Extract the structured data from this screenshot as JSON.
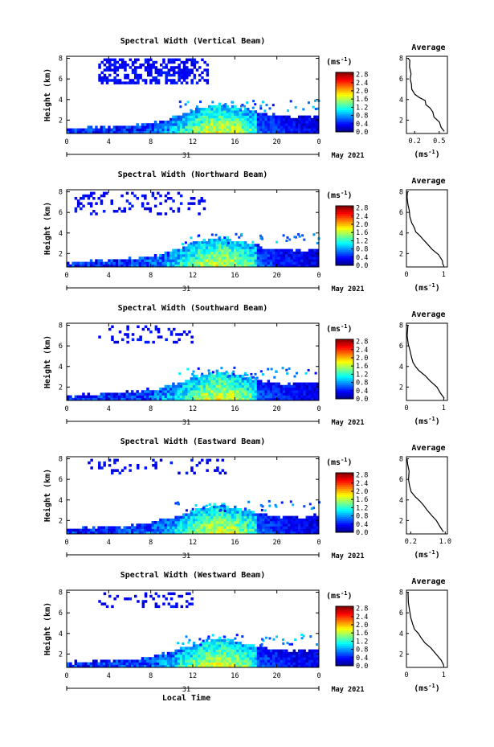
{
  "figure": {
    "date_label": "May 2021",
    "day_label": "31",
    "xlabel": "Local Time",
    "ylabel": "Height (km)",
    "colorbar_unit": "(ms",
    "colorbar_unit_sup": "-1",
    "avg_title": "Average",
    "avg_unit": "(ms",
    "avg_unit_sup": "-1",
    "colormap": "jet"
  },
  "chart_data": [
    {
      "type": "heatmap",
      "title": "Spectral Width (Vertical Beam)",
      "xlabel": "Local Time",
      "ylabel": "Height (km)",
      "x_ticks": [
        "0",
        "4",
        "8",
        "12",
        "16",
        "20",
        "0"
      ],
      "xlim": [
        0,
        24
      ],
      "y_ticks": [
        "2",
        "4",
        "6",
        "8"
      ],
      "ylim": [
        0.7,
        8.2
      ],
      "colorbar": {
        "label": "(ms-1)",
        "ticks": [
          "0.0",
          "0.4",
          "0.8",
          "1.2",
          "1.6",
          "2.0",
          "2.4",
          "2.8"
        ],
        "range": [
          0,
          2.9
        ]
      },
      "upper_echo": {
        "x_start": 3,
        "x_end": 13.5,
        "y_low": 5.6,
        "y_high": 8.0
      },
      "average_profile": {
        "title": "Average",
        "xlabel": "(ms-1)",
        "x_ticks": [
          "0.2",
          "0.5"
        ],
        "xlim": [
          0.1,
          0.6
        ],
        "y_ticks": [
          "2",
          "4",
          "6",
          "8"
        ],
        "points": [
          [
            0.56,
            0.9
          ],
          [
            0.52,
            1.3
          ],
          [
            0.5,
            1.8
          ],
          [
            0.44,
            2.3
          ],
          [
            0.43,
            2.8
          ],
          [
            0.38,
            3.2
          ],
          [
            0.34,
            3.5
          ],
          [
            0.33,
            3.9
          ],
          [
            0.26,
            4.2
          ],
          [
            0.2,
            4.5
          ],
          [
            0.17,
            5.0
          ],
          [
            0.16,
            5.5
          ],
          [
            0.15,
            6.0
          ],
          [
            0.15,
            6.5
          ],
          [
            0.14,
            7.2
          ],
          [
            0.14,
            7.8
          ],
          [
            0.13,
            8.0
          ]
        ]
      }
    },
    {
      "type": "heatmap",
      "title": "Spectral Width (Northward Beam)",
      "xlabel": "Local Time",
      "ylabel": "Height (km)",
      "x_ticks": [
        "0",
        "4",
        "8",
        "12",
        "16",
        "20",
        "0"
      ],
      "xlim": [
        0,
        24
      ],
      "y_ticks": [
        "2",
        "4",
        "6",
        "8"
      ],
      "ylim": [
        0.7,
        8.2
      ],
      "colorbar": {
        "label": "(ms-1)",
        "ticks": [
          "0.0",
          "0.4",
          "0.8",
          "1.2",
          "1.6",
          "2.0",
          "2.4",
          "2.8"
        ],
        "range": [
          0,
          2.9
        ]
      },
      "upper_echo": {
        "x_start": 0.5,
        "x_end": 13,
        "y_low": 5.8,
        "y_high": 8.0
      },
      "average_profile": {
        "title": "Average",
        "xlabel": "(ms-1)",
        "x_ticks": [
          "0",
          "1"
        ],
        "xlim": [
          0,
          1.1
        ],
        "y_ticks": [
          "2",
          "4",
          "6",
          "8"
        ],
        "points": [
          [
            1.0,
            0.9
          ],
          [
            0.95,
            1.3
          ],
          [
            0.85,
            1.9
          ],
          [
            0.7,
            2.4
          ],
          [
            0.55,
            2.9
          ],
          [
            0.45,
            3.4
          ],
          [
            0.35,
            3.8
          ],
          [
            0.25,
            4.1
          ],
          [
            0.2,
            4.5
          ],
          [
            0.12,
            5.0
          ],
          [
            0.08,
            5.6
          ],
          [
            0.06,
            6.2
          ],
          [
            0.05,
            6.8
          ],
          [
            0.04,
            7.5
          ],
          [
            0.03,
            8.0
          ]
        ]
      }
    },
    {
      "type": "heatmap",
      "title": "Spectral Width (Southward Beam)",
      "xlabel": "Local Time",
      "ylabel": "Height (km)",
      "x_ticks": [
        "0",
        "4",
        "8",
        "12",
        "16",
        "20",
        "0"
      ],
      "xlim": [
        0,
        24
      ],
      "y_ticks": [
        "2",
        "4",
        "6",
        "8"
      ],
      "ylim": [
        0.7,
        8.2
      ],
      "colorbar": {
        "label": "(ms-1)",
        "ticks": [
          "0.0",
          "0.4",
          "0.8",
          "1.2",
          "1.6",
          "2.0",
          "2.4",
          "2.8"
        ],
        "range": [
          0,
          2.9
        ]
      },
      "upper_echo": {
        "x_start": 3,
        "x_end": 12,
        "y_low": 6.3,
        "y_high": 8.0
      },
      "average_profile": {
        "title": "Average",
        "xlabel": "(ms-1)",
        "x_ticks": [
          "0",
          "1"
        ],
        "xlim": [
          0,
          1.1
        ],
        "y_ticks": [
          "2",
          "4",
          "6",
          "8"
        ],
        "points": [
          [
            1.0,
            0.9
          ],
          [
            0.92,
            1.4
          ],
          [
            0.8,
            2.0
          ],
          [
            0.65,
            2.6
          ],
          [
            0.5,
            3.1
          ],
          [
            0.35,
            3.6
          ],
          [
            0.25,
            4.0
          ],
          [
            0.18,
            4.4
          ],
          [
            0.12,
            4.9
          ],
          [
            0.08,
            5.5
          ],
          [
            0.06,
            6.2
          ],
          [
            0.04,
            7.0
          ],
          [
            0.03,
            8.0
          ]
        ]
      }
    },
    {
      "type": "heatmap",
      "title": "Spectral Width (Eastward Beam)",
      "xlabel": "Local Time",
      "ylabel": "Height (km)",
      "x_ticks": [
        "0",
        "4",
        "8",
        "12",
        "16",
        "20",
        "0"
      ],
      "xlim": [
        0,
        24
      ],
      "y_ticks": [
        "2",
        "4",
        "6",
        "8"
      ],
      "ylim": [
        0.7,
        8.2
      ],
      "colorbar": {
        "label": "(ms-1)",
        "ticks": [
          "0.0",
          "0.4",
          "0.8",
          "1.2",
          "1.6",
          "2.0",
          "2.4",
          "2.8"
        ],
        "range": [
          0,
          2.9
        ]
      },
      "upper_echo": {
        "x_start": 2,
        "x_end": 15,
        "y_low": 6.5,
        "y_high": 8.0
      },
      "average_profile": {
        "title": "Average",
        "xlabel": "(ms-1)",
        "x_ticks": [
          "0.2",
          "1.0"
        ],
        "xlim": [
          0.1,
          1.05
        ],
        "y_ticks": [
          "2",
          "4",
          "6",
          "8"
        ],
        "points": [
          [
            0.95,
            0.9
          ],
          [
            0.88,
            1.4
          ],
          [
            0.8,
            2.0
          ],
          [
            0.7,
            2.5
          ],
          [
            0.6,
            3.0
          ],
          [
            0.5,
            3.5
          ],
          [
            0.4,
            3.9
          ],
          [
            0.3,
            4.3
          ],
          [
            0.22,
            4.8
          ],
          [
            0.18,
            5.4
          ],
          [
            0.16,
            6.0
          ],
          [
            0.15,
            6.8
          ],
          [
            0.14,
            7.5
          ],
          [
            0.13,
            8.0
          ]
        ]
      }
    },
    {
      "type": "heatmap",
      "title": "Spectral Width (Westward Beam)",
      "xlabel": "Local Time",
      "ylabel": "Height (km)",
      "x_ticks": [
        "0",
        "4",
        "8",
        "12",
        "16",
        "20",
        "0"
      ],
      "xlim": [
        0,
        24
      ],
      "y_ticks": [
        "2",
        "4",
        "6",
        "8"
      ],
      "ylim": [
        0.7,
        8.2
      ],
      "colorbar": {
        "label": "(ms-1)",
        "ticks": [
          "0.0",
          "0.4",
          "0.8",
          "1.2",
          "1.6",
          "2.0",
          "2.4",
          "2.8"
        ],
        "range": [
          0,
          2.9
        ]
      },
      "upper_echo": {
        "x_start": 3,
        "x_end": 12,
        "y_low": 6.5,
        "y_high": 8.0
      },
      "average_profile": {
        "title": "Average",
        "xlabel": "(ms-1)",
        "x_ticks": [
          "0",
          "1"
        ],
        "xlim": [
          0,
          1.1
        ],
        "y_ticks": [
          "2",
          "4",
          "6",
          "8"
        ],
        "points": [
          [
            1.0,
            0.9
          ],
          [
            0.92,
            1.4
          ],
          [
            0.8,
            2.0
          ],
          [
            0.65,
            2.6
          ],
          [
            0.5,
            3.1
          ],
          [
            0.4,
            3.6
          ],
          [
            0.3,
            4.0
          ],
          [
            0.22,
            4.4
          ],
          [
            0.15,
            4.9
          ],
          [
            0.1,
            5.5
          ],
          [
            0.08,
            6.2
          ],
          [
            0.06,
            7.0
          ],
          [
            0.05,
            8.0
          ]
        ]
      }
    }
  ]
}
